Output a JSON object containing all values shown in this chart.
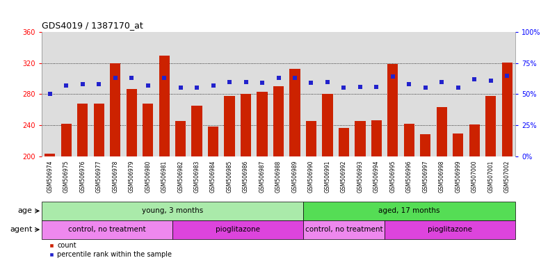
{
  "title": "GDS4019 / 1387170_at",
  "samples": [
    "GSM506974",
    "GSM506975",
    "GSM506976",
    "GSM506977",
    "GSM506978",
    "GSM506979",
    "GSM506980",
    "GSM506981",
    "GSM506982",
    "GSM506983",
    "GSM506984",
    "GSM506985",
    "GSM506986",
    "GSM506987",
    "GSM506988",
    "GSM506989",
    "GSM506990",
    "GSM506991",
    "GSM506992",
    "GSM506993",
    "GSM506994",
    "GSM506995",
    "GSM506996",
    "GSM506997",
    "GSM506998",
    "GSM506999",
    "GSM507000",
    "GSM507001",
    "GSM507002"
  ],
  "counts": [
    203,
    242,
    268,
    268,
    320,
    287,
    268,
    330,
    245,
    265,
    238,
    278,
    280,
    283,
    290,
    313,
    245,
    280,
    236,
    245,
    246,
    319,
    242,
    228,
    263,
    229,
    241,
    278,
    321
  ],
  "percentiles": [
    50,
    57,
    58,
    58,
    63,
    63,
    57,
    63,
    55,
    55,
    57,
    60,
    60,
    59,
    63,
    63,
    59,
    60,
    55,
    56,
    56,
    64,
    58,
    55,
    60,
    55,
    62,
    61,
    65
  ],
  "bar_color": "#cc2200",
  "dot_color": "#2222cc",
  "ylim_left": [
    200,
    360
  ],
  "ylim_right": [
    0,
    100
  ],
  "yticks_left": [
    200,
    240,
    280,
    320,
    360
  ],
  "yticks_right": [
    0,
    25,
    50,
    75,
    100
  ],
  "age_groups": [
    {
      "label": "young, 3 months",
      "start": 0,
      "end": 16,
      "color": "#aaeaaa"
    },
    {
      "label": "aged, 17 months",
      "start": 16,
      "end": 29,
      "color": "#55dd55"
    }
  ],
  "agent_groups": [
    {
      "label": "control, no treatment",
      "start": 0,
      "end": 8,
      "color": "#ee88ee"
    },
    {
      "label": "pioglitazone",
      "start": 8,
      "end": 16,
      "color": "#dd44dd"
    },
    {
      "label": "control, no treatment",
      "start": 16,
      "end": 21,
      "color": "#ee88ee"
    },
    {
      "label": "pioglitazone",
      "start": 21,
      "end": 29,
      "color": "#dd44dd"
    }
  ],
  "bg_color": "#dddddd",
  "fig_width": 8.01,
  "fig_height": 3.84,
  "dpi": 100
}
